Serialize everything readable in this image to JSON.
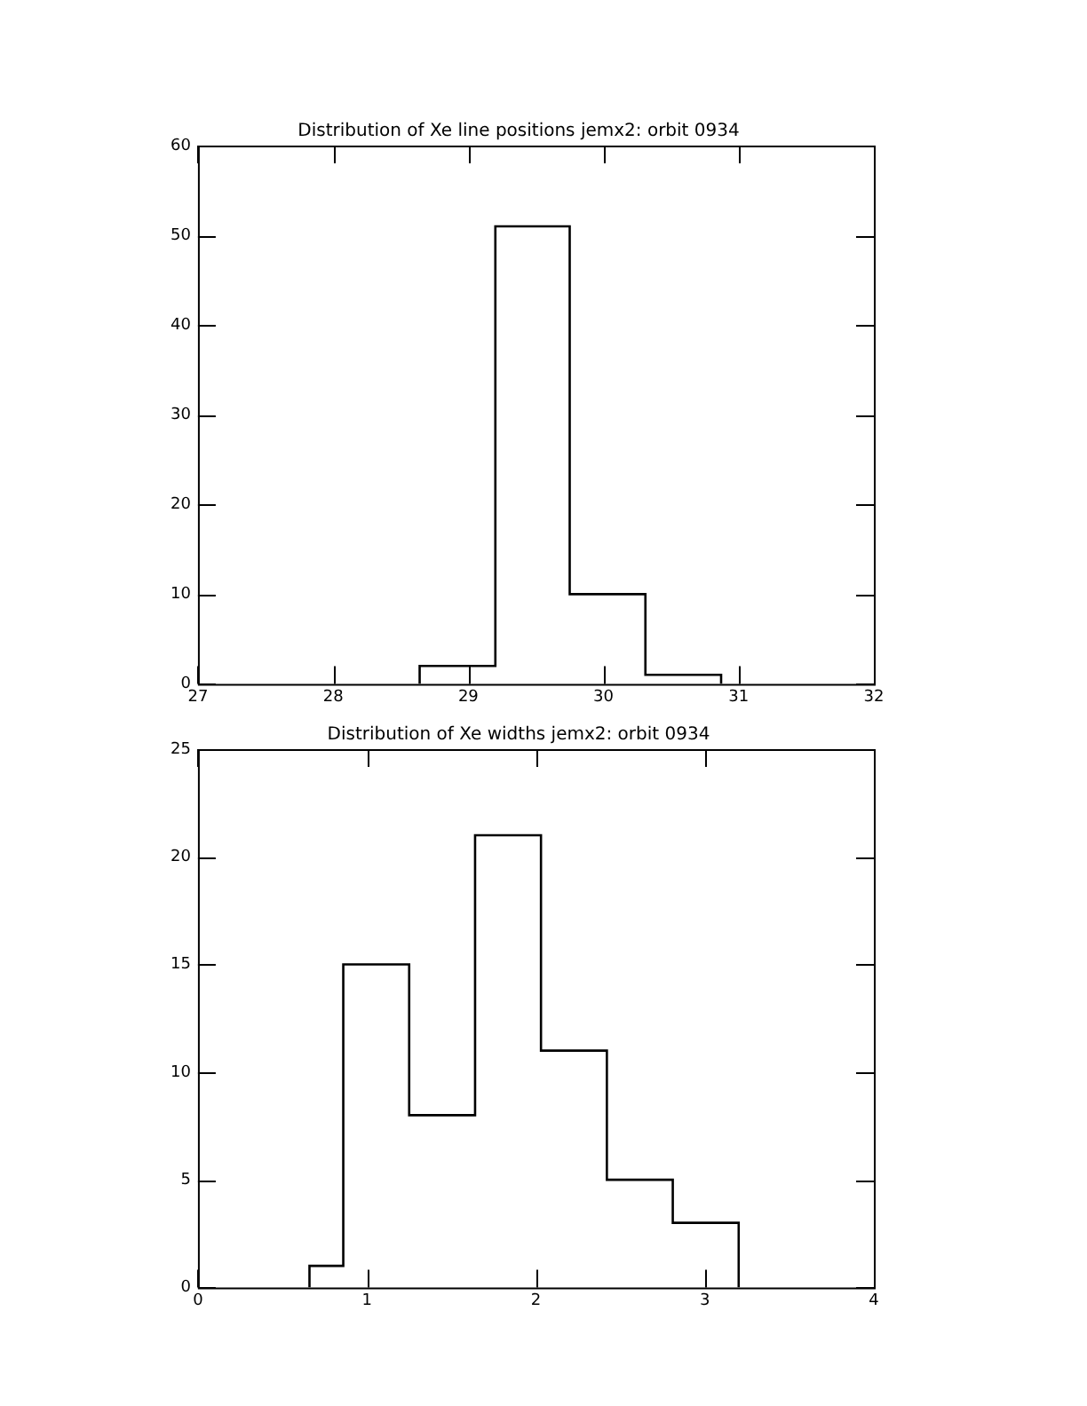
{
  "chart_data": [
    {
      "type": "histogram",
      "title": "Distribution of Xe line positions jemx2: orbit 0934",
      "bins": [
        28.64,
        29.2,
        29.75,
        30.31,
        30.87
      ],
      "values": [
        2,
        51,
        10,
        1
      ],
      "color": "#000000",
      "xlim": [
        27,
        32
      ],
      "xticks": [
        27,
        28,
        29,
        30,
        31,
        32
      ],
      "ylim": [
        0,
        60
      ],
      "yticks": [
        0,
        10,
        20,
        30,
        40,
        50,
        60
      ],
      "grid": false,
      "legend": false
    },
    {
      "type": "histogram",
      "title": "Distribution of Xe widths jemx2: orbit 0934",
      "bins": [
        0.66,
        0.86,
        1.25,
        1.64,
        2.03,
        2.42,
        2.81,
        3.2
      ],
      "values": [
        1,
        15,
        8,
        21,
        11,
        5,
        3
      ],
      "color": "#000000",
      "xlim": [
        0,
        4
      ],
      "xticks": [
        0,
        1,
        2,
        3,
        4
      ],
      "ylim": [
        0,
        25
      ],
      "yticks": [
        0,
        5,
        10,
        15,
        20,
        25
      ],
      "grid": false,
      "legend": false
    }
  ]
}
